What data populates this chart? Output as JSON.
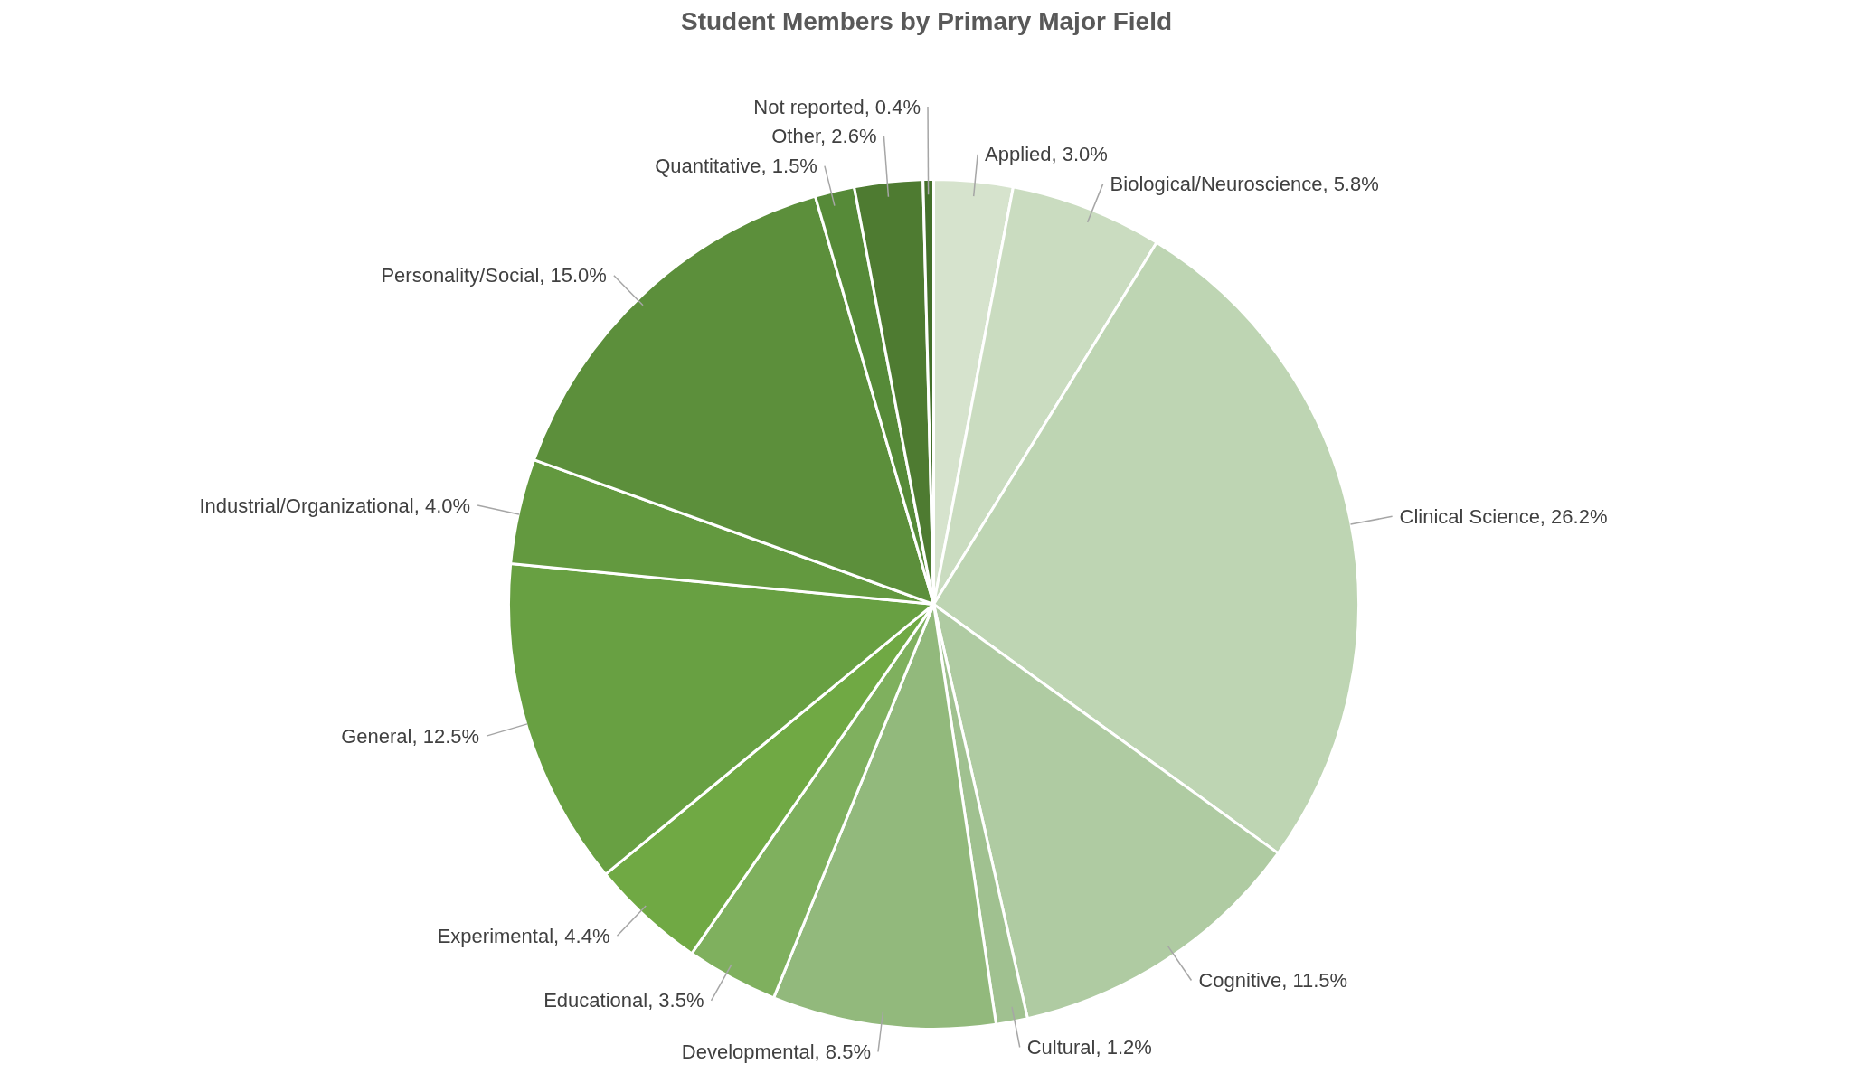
{
  "chart_data": {
    "type": "pie",
    "title": "Student Members by Primary Major Field",
    "categories": [
      "Applied",
      "Biological/Neuroscience",
      "Clinical Science",
      "Cognitive",
      "Cultural",
      "Developmental",
      "Educational",
      "Experimental",
      "General",
      "Industrial/Organizational",
      "Personality/Social",
      "Quantitative",
      "Other",
      "Not reported"
    ],
    "values": [
      3.0,
      5.8,
      26.2,
      11.5,
      1.2,
      8.5,
      3.5,
      4.4,
      12.5,
      4.0,
      15.0,
      1.5,
      2.6,
      0.4
    ],
    "value_labels": [
      "3.0%",
      "5.8%",
      "26.2%",
      "11.5%",
      "1.2%",
      "8.5%",
      "3.5%",
      "4.4%",
      "12.5%",
      "4.0%",
      "15.0%",
      "1.5%",
      "2.6%",
      "0.4%"
    ],
    "colors": [
      "#d6e3cd",
      "#cadcc0",
      "#bed5b3",
      "#afcba2",
      "#a0c190",
      "#92b97c",
      "#7fb05e",
      "#70a944",
      "#68a042",
      "#63993f",
      "#5c8f3b",
      "#568a38",
      "#4e7b31",
      "#44702b"
    ]
  }
}
